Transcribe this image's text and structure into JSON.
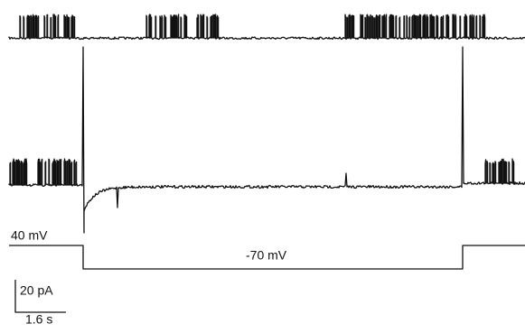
{
  "labels": {
    "holding": "40 mV",
    "step": "-70 mV",
    "current_scale": "20 pA",
    "time_scale": "1.6 s"
  }
}
